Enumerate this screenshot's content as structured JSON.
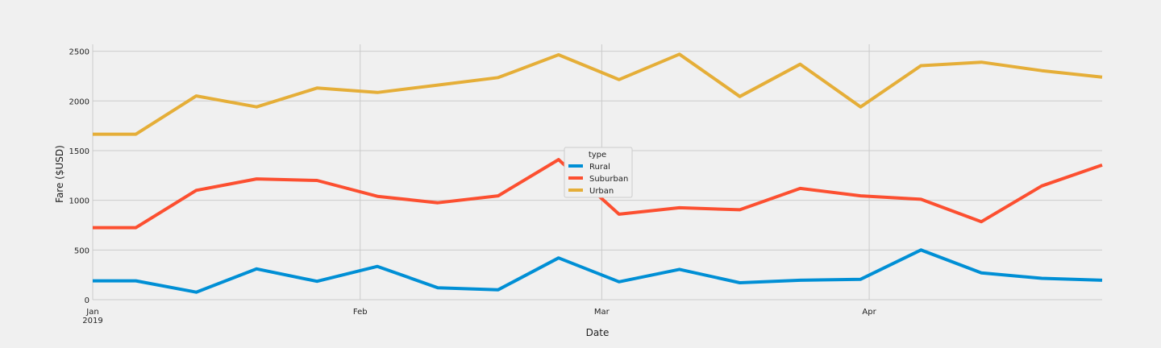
{
  "chart_data": {
    "type": "line",
    "xlabel": "Date",
    "ylabel": "Fare ($USD)",
    "x": [
      "2019-01-06",
      "2019-01-13",
      "2019-01-20",
      "2019-01-27",
      "2019-02-03",
      "2019-02-10",
      "2019-02-17",
      "2019-02-24",
      "2019-03-03",
      "2019-03-10",
      "2019-03-17",
      "2019-03-24",
      "2019-03-31",
      "2019-04-07",
      "2019-04-14",
      "2019-04-21",
      "2019-04-28"
    ],
    "x_ticks": [
      {
        "date": "2019-01-01",
        "label": "Jan",
        "sublabel": "2019"
      },
      {
        "date": "2019-02-01",
        "label": "Feb",
        "sublabel": ""
      },
      {
        "date": "2019-03-01",
        "label": "Mar",
        "sublabel": ""
      },
      {
        "date": "2019-04-01",
        "label": "Apr",
        "sublabel": ""
      }
    ],
    "xlim": [
      "2019-01-01",
      "2019-04-28"
    ],
    "ylim": [
      0,
      2570
    ],
    "y_ticks": [
      0,
      500,
      1000,
      1500,
      2000,
      2500
    ],
    "grid": true,
    "legend": {
      "title": "type",
      "placement": "center"
    },
    "series": [
      {
        "name": "Rural",
        "color": "#008fd5",
        "values": [
          190,
          75,
          310,
          185,
          335,
          120,
          100,
          420,
          180,
          305,
          170,
          195,
          205,
          500,
          270,
          215,
          195
        ]
      },
      {
        "name": "Suburban",
        "color": "#fc4f30",
        "values": [
          725,
          1100,
          1215,
          1200,
          1040,
          975,
          1045,
          1410,
          860,
          925,
          905,
          1120,
          1045,
          1010,
          785,
          1145,
          1355
        ]
      },
      {
        "name": "Urban",
        "color": "#e5ae38",
        "values": [
          1665,
          2050,
          1940,
          2130,
          2085,
          2160,
          2235,
          2465,
          2215,
          2470,
          2045,
          2370,
          1940,
          2355,
          2390,
          2305,
          2240
        ]
      }
    ]
  }
}
